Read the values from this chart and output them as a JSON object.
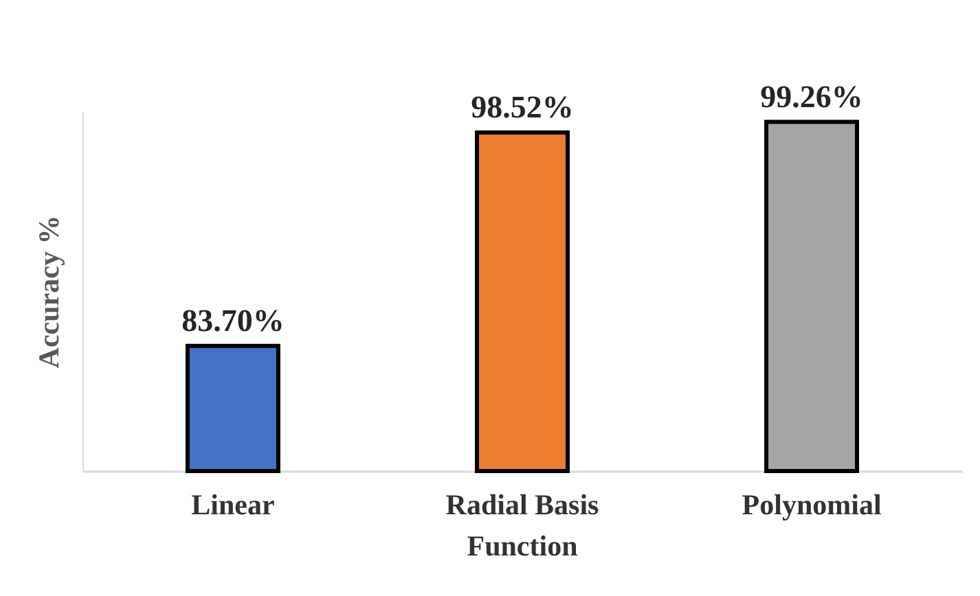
{
  "chart_data": {
    "type": "bar",
    "ylabel": "Accuracy %",
    "categories": [
      "Linear",
      "Radial Basis Function",
      "Polynomial"
    ],
    "values": [
      83.7,
      98.52,
      99.26
    ],
    "colors": [
      "#4472c4",
      "#ed7d31",
      "#a5a5a5"
    ],
    "value_labels": [
      "83.70%",
      "98.52%",
      "99.26%"
    ],
    "ylim": [
      75,
      100
    ],
    "tick_labels": "x",
    "grid": false
  }
}
